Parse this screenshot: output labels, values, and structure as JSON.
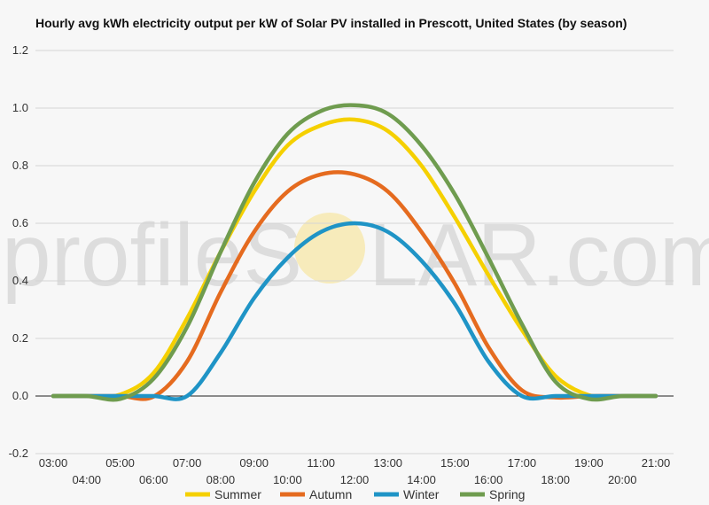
{
  "chart_data": {
    "type": "line",
    "title": "Hourly avg kWh electricity output per kW of Solar PV installed in Prescott, United States (by season)",
    "xlabel": "",
    "ylabel": "",
    "ylim": [
      -0.2,
      1.2
    ],
    "yticks": [
      "-0.2",
      "0.0",
      "0.2",
      "0.4",
      "0.6",
      "0.8",
      "1.0",
      "1.2"
    ],
    "x": [
      "03:00",
      "04:00",
      "05:00",
      "06:00",
      "07:00",
      "08:00",
      "09:00",
      "10:00",
      "11:00",
      "12:00",
      "13:00",
      "14:00",
      "15:00",
      "16:00",
      "17:00",
      "18:00",
      "19:00",
      "20:00",
      "21:00"
    ],
    "grid": true,
    "legend": "bottom",
    "series": [
      {
        "name": "Summer",
        "color": "#f5d000",
        "values": [
          0,
          0,
          0.005,
          0.08,
          0.27,
          0.5,
          0.71,
          0.87,
          0.94,
          0.96,
          0.92,
          0.8,
          0.62,
          0.42,
          0.23,
          0.07,
          0.003,
          0,
          0
        ]
      },
      {
        "name": "Autumn",
        "color": "#e56b1f",
        "values": [
          0,
          0,
          0,
          -0.002,
          0.12,
          0.36,
          0.57,
          0.71,
          0.77,
          0.77,
          0.71,
          0.57,
          0.39,
          0.17,
          0.02,
          -0.005,
          0,
          0,
          0
        ]
      },
      {
        "name": "Winter",
        "color": "#1f94c6",
        "values": [
          0,
          0,
          0,
          0,
          0,
          0.15,
          0.34,
          0.48,
          0.57,
          0.6,
          0.57,
          0.47,
          0.32,
          0.12,
          0,
          0,
          0,
          0,
          0
        ]
      },
      {
        "name": "Spring",
        "color": "#6f9c4f",
        "values": [
          0,
          0,
          -0.01,
          0.06,
          0.24,
          0.5,
          0.74,
          0.91,
          0.99,
          1.01,
          0.98,
          0.87,
          0.7,
          0.48,
          0.25,
          0.05,
          -0.01,
          0,
          0
        ]
      }
    ]
  },
  "watermark": {
    "text_left": "profileS",
    "text_right": "LAR.com",
    "sun_color": "#f7e28a"
  }
}
